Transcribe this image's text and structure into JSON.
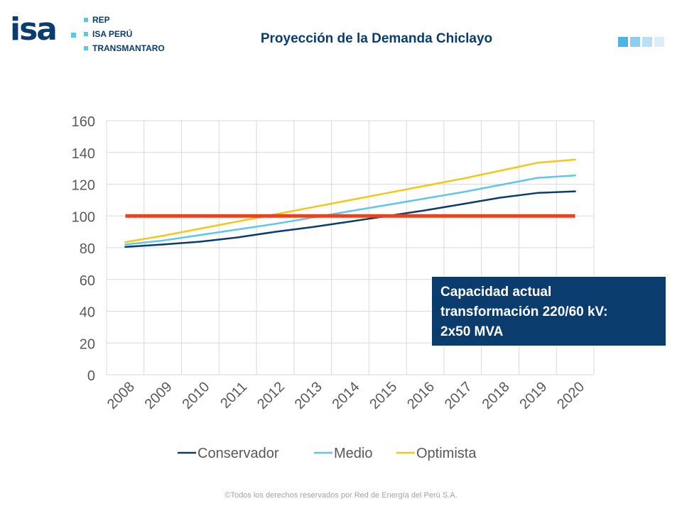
{
  "logo": {
    "brand": "isa",
    "items": [
      "REP",
      "ISA PERÚ",
      "TRANSMANTARO"
    ]
  },
  "header": {
    "title": "Proyección de la Demanda Chiclayo",
    "square_colors": [
      "#4fb3e8",
      "#8ccdf0",
      "#b8dff5",
      "#dcedf9"
    ]
  },
  "chart_data": {
    "type": "line",
    "x": [
      "2008",
      "2009",
      "2010",
      "2011",
      "2012",
      "2013",
      "2014",
      "2015",
      "2016",
      "2017",
      "2018",
      "2019",
      "2020"
    ],
    "ylim": [
      0,
      160
    ],
    "yticks": [
      0,
      20,
      40,
      60,
      80,
      100,
      120,
      140,
      160
    ],
    "grid": true,
    "legend_position": "bottom",
    "series": [
      {
        "name": "Conservador",
        "color": "#0a3c6e",
        "values": [
          80.5,
          82,
          83.8,
          86.5,
          90,
          93,
          96.5,
          100,
          103.5,
          107.5,
          111.5,
          114.5,
          115.5
        ]
      },
      {
        "name": "Medio",
        "color": "#5ec6ec",
        "values": [
          82,
          84.5,
          88,
          91.5,
          95,
          99,
          103,
          107,
          111,
          115,
          119.5,
          124,
          125.5
        ]
      },
      {
        "name": "Optimista",
        "color": "#f7c614",
        "values": [
          83.5,
          87.5,
          92,
          96.5,
          101,
          105.5,
          110,
          114.5,
          119,
          123.5,
          128.5,
          133.5,
          135.5
        ]
      },
      {
        "name": "",
        "color": "#e8421e",
        "values": [
          100,
          100,
          100,
          100,
          100,
          100,
          100,
          100,
          100,
          100,
          100,
          100,
          100
        ]
      }
    ]
  },
  "callout": {
    "lines": [
      "Capacidad actual",
      "transformación 220/60 kV:",
      "2x50 MVA"
    ]
  },
  "footer": "©Todos los derechos reservados por Red de Energía del Perú S.A."
}
